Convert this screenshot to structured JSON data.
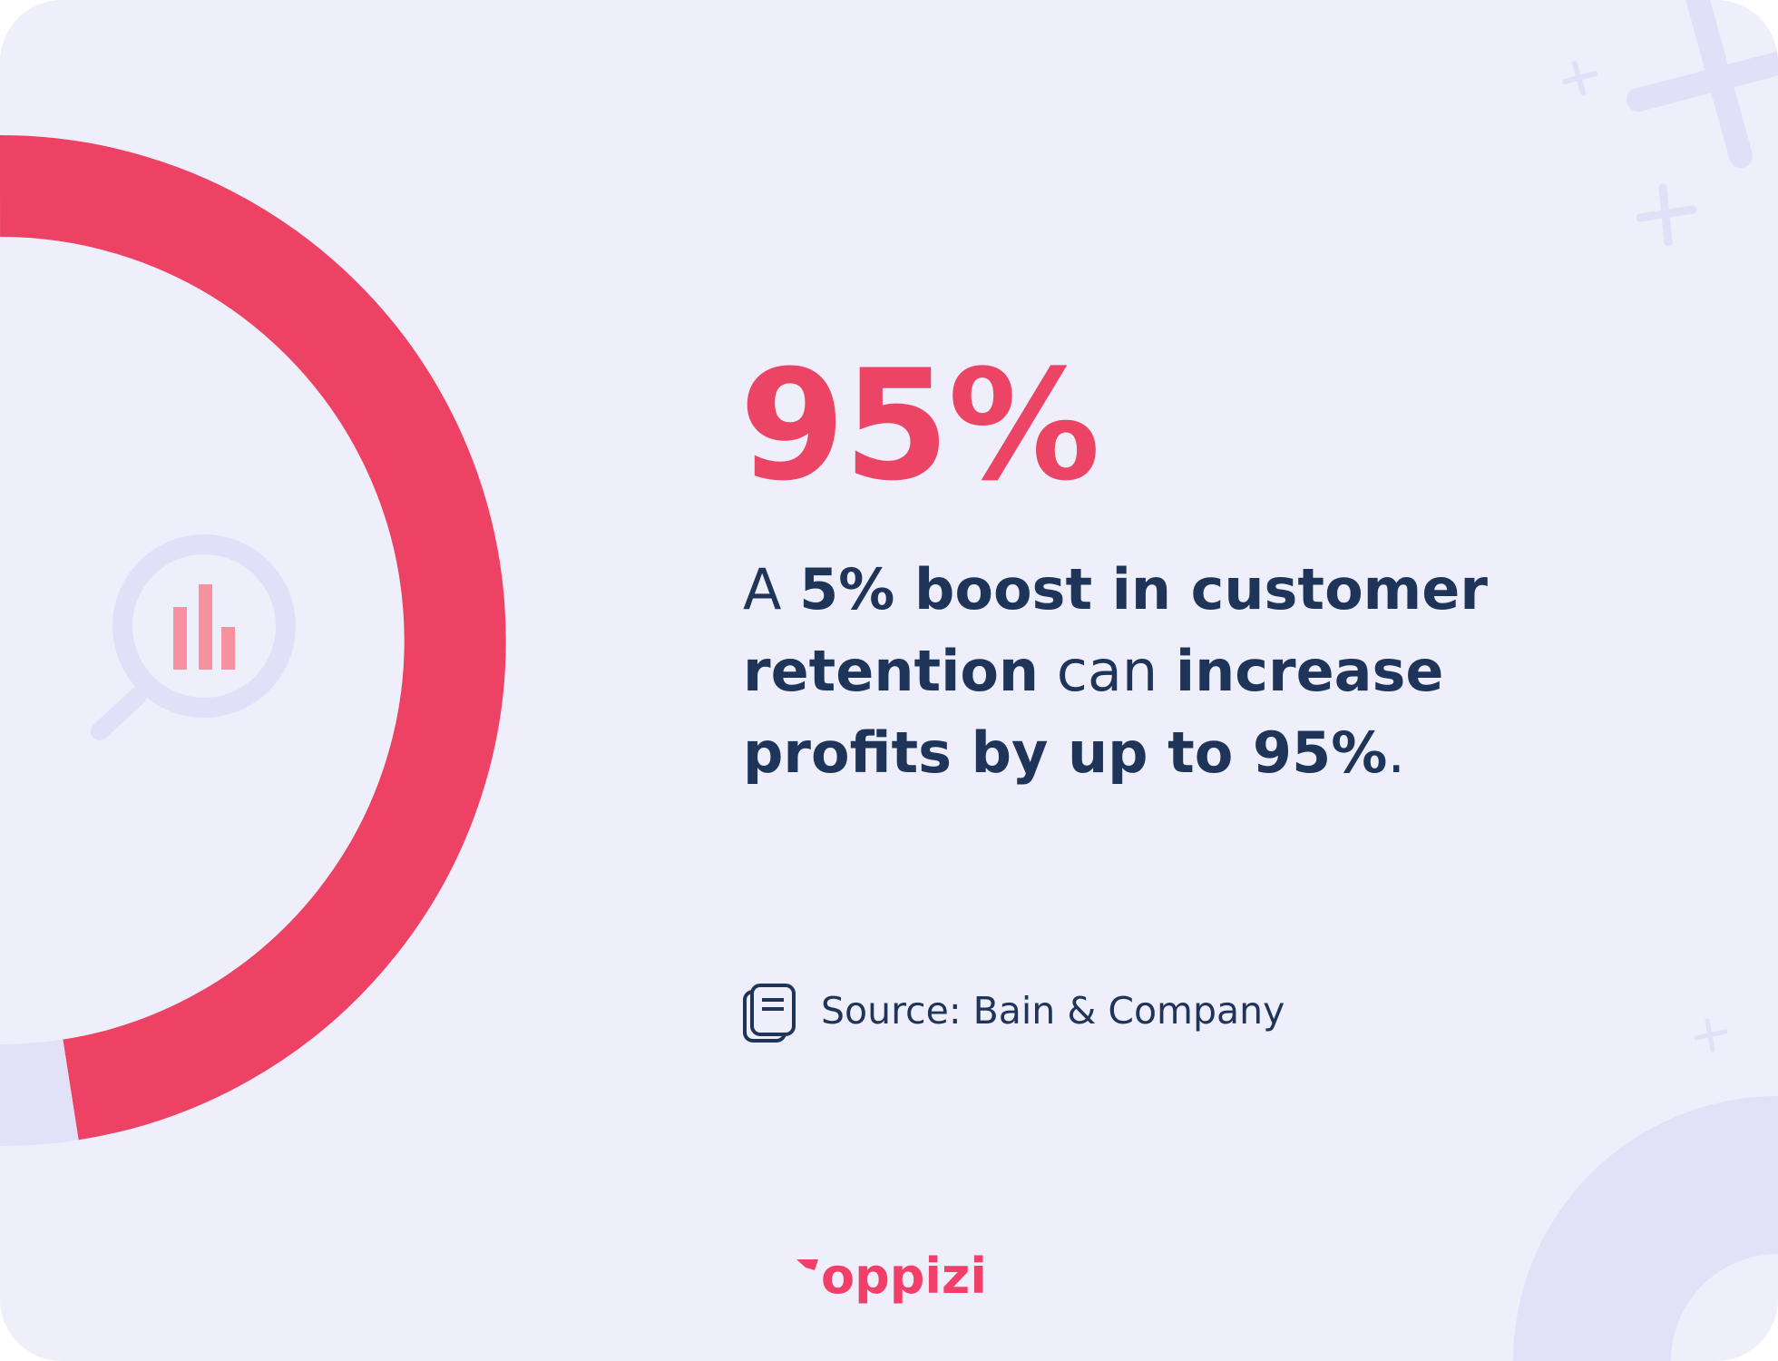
{
  "stat": "95%",
  "description": [
    {
      "text": "A ",
      "bold": false
    },
    {
      "text": "5% boost in customer retention",
      "bold": true
    },
    {
      "text": " can ",
      "bold": false
    },
    {
      "text": "increase profits by up to 95%",
      "bold": true
    },
    {
      "text": ".",
      "bold": false
    }
  ],
  "source": "Source: Bain & Company",
  "brand": "oppizi"
}
